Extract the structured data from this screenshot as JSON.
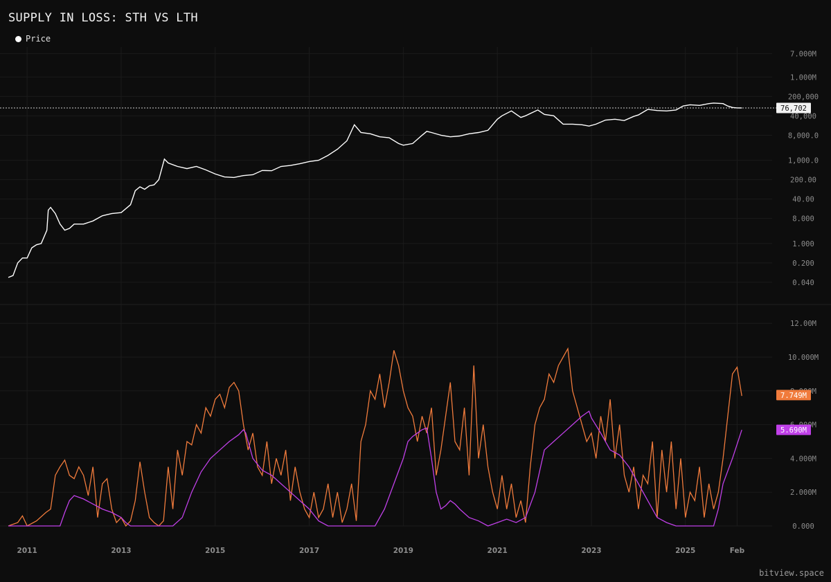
{
  "title": "SUPPLY IN LOSS: STH VS LTH",
  "legend": {
    "label": "Price",
    "color": "#ffffff"
  },
  "watermark": "bitview.space",
  "colors": {
    "background": "#0d0d0d",
    "price": "#ffffff",
    "sth": "#f07b3c",
    "lth": "#c040e8",
    "grid": "#1b1b1b"
  },
  "chart_data": [
    {
      "type": "line",
      "scale": "log",
      "series": [
        {
          "name": "Price",
          "x": [
            2010.6,
            2010.7,
            2010.8,
            2010.9,
            2011.0,
            2011.1,
            2011.2,
            2011.3,
            2011.42,
            2011.45,
            2011.5,
            2011.6,
            2011.7,
            2011.8,
            2011.9,
            2012.0,
            2012.2,
            2012.4,
            2012.6,
            2012.8,
            2013.0,
            2013.2,
            2013.3,
            2013.4,
            2013.5,
            2013.6,
            2013.7,
            2013.8,
            2013.92,
            2014.0,
            2014.2,
            2014.4,
            2014.6,
            2014.8,
            2015.0,
            2015.2,
            2015.4,
            2015.6,
            2015.8,
            2016.0,
            2016.2,
            2016.4,
            2016.6,
            2016.8,
            2017.0,
            2017.2,
            2017.4,
            2017.6,
            2017.8,
            2017.96,
            2018.1,
            2018.3,
            2018.5,
            2018.7,
            2018.9,
            2019.0,
            2019.2,
            2019.4,
            2019.5,
            2019.6,
            2019.8,
            2020.0,
            2020.2,
            2020.4,
            2020.6,
            2020.8,
            2021.0,
            2021.1,
            2021.3,
            2021.5,
            2021.6,
            2021.86,
            2022.0,
            2022.2,
            2022.4,
            2022.6,
            2022.8,
            2022.95,
            2023.1,
            2023.3,
            2023.5,
            2023.7,
            2023.9,
            2024.0,
            2024.2,
            2024.4,
            2024.6,
            2024.8,
            2024.95,
            2025.1,
            2025.3,
            2025.5,
            2025.6,
            2025.8,
            2025.9,
            2026.0,
            2026.1,
            2026.2
          ],
          "y": [
            0.06,
            0.07,
            0.2,
            0.3,
            0.3,
            0.7,
            0.9,
            1.0,
            3.0,
            16,
            20,
            12,
            5.0,
            3.0,
            3.5,
            5.0,
            5.0,
            6.5,
            10,
            12,
            13,
            25,
            80,
            110,
            90,
            120,
            130,
            200,
            1100,
            800,
            600,
            500,
            600,
            450,
            320,
            250,
            240,
            280,
            300,
            430,
            420,
            600,
            650,
            750,
            900,
            1000,
            1500,
            2500,
            5000,
            19000,
            10000,
            9000,
            7000,
            6500,
            4000,
            3500,
            4000,
            8000,
            11000,
            10000,
            8000,
            7000,
            7500,
            9000,
            10000,
            12000,
            30000,
            40000,
            60000,
            35000,
            40000,
            65000,
            45000,
            40000,
            20000,
            20000,
            19000,
            17000,
            20000,
            28000,
            30000,
            27000,
            38000,
            43000,
            68000,
            62000,
            60000,
            65000,
            90000,
            100000,
            95000,
            110000,
            115000,
            110000,
            90000,
            80000,
            77000,
            76702
          ],
          "last_label": "76,702"
        }
      ],
      "y_ticks": [
        "0.040",
        "0.200",
        "1.000",
        "8.000",
        "40.00",
        "200.00",
        "1,000.0",
        "8,000.0",
        "40,000",
        "200,000",
        "1.000M",
        "7.000M"
      ],
      "y_tick_values": [
        0.04,
        0.2,
        1,
        8,
        40,
        200,
        1000,
        8000,
        40000,
        200000,
        1000000,
        7000000
      ],
      "ylim": [
        0.015,
        12000000
      ]
    },
    {
      "type": "line",
      "series": [
        {
          "name": "STH",
          "color": "#f07b3c",
          "x": [
            2010.6,
            2010.8,
            2010.9,
            2011.0,
            2011.2,
            2011.4,
            2011.5,
            2011.6,
            2011.7,
            2011.8,
            2011.9,
            2012.0,
            2012.1,
            2012.2,
            2012.3,
            2012.4,
            2012.5,
            2012.6,
            2012.7,
            2012.8,
            2012.9,
            2013.0,
            2013.1,
            2013.2,
            2013.3,
            2013.4,
            2013.5,
            2013.6,
            2013.7,
            2013.8,
            2013.9,
            2014.0,
            2014.1,
            2014.2,
            2014.3,
            2014.4,
            2014.5,
            2014.6,
            2014.7,
            2014.8,
            2014.9,
            2015.0,
            2015.1,
            2015.2,
            2015.3,
            2015.4,
            2015.5,
            2015.6,
            2015.7,
            2015.8,
            2015.9,
            2016.0,
            2016.1,
            2016.2,
            2016.3,
            2016.4,
            2016.5,
            2016.6,
            2016.7,
            2016.8,
            2016.9,
            2017.0,
            2017.1,
            2017.2,
            2017.3,
            2017.4,
            2017.5,
            2017.6,
            2017.7,
            2017.8,
            2017.9,
            2018.0,
            2018.1,
            2018.2,
            2018.3,
            2018.4,
            2018.5,
            2018.6,
            2018.7,
            2018.8,
            2018.9,
            2019.0,
            2019.1,
            2019.2,
            2019.3,
            2019.4,
            2019.5,
            2019.6,
            2019.7,
            2019.8,
            2019.9,
            2020.0,
            2020.1,
            2020.2,
            2020.3,
            2020.4,
            2020.5,
            2020.6,
            2020.7,
            2020.8,
            2020.9,
            2021.0,
            2021.1,
            2021.2,
            2021.3,
            2021.4,
            2021.5,
            2021.6,
            2021.7,
            2021.8,
            2021.9,
            2022.0,
            2022.1,
            2022.2,
            2022.3,
            2022.4,
            2022.5,
            2022.6,
            2022.7,
            2022.8,
            2022.9,
            2023.0,
            2023.1,
            2023.2,
            2023.3,
            2023.4,
            2023.5,
            2023.6,
            2023.7,
            2023.8,
            2023.9,
            2024.0,
            2024.1,
            2024.2,
            2024.3,
            2024.4,
            2024.5,
            2024.6,
            2024.7,
            2024.8,
            2024.9,
            2025.0,
            2025.1,
            2025.2,
            2025.3,
            2025.4,
            2025.5,
            2025.6,
            2025.7,
            2025.8,
            2025.9,
            2026.0,
            2026.1,
            2026.2
          ],
          "y": [
            0.0,
            0.2,
            0.6,
            0.0,
            0.3,
            0.8,
            1.0,
            3.0,
            3.5,
            3.9,
            3.0,
            2.8,
            3.5,
            3.0,
            1.8,
            3.5,
            0.5,
            2.5,
            2.8,
            1.0,
            0.2,
            0.5,
            0.0,
            0.3,
            1.5,
            3.8,
            2.0,
            0.5,
            0.2,
            0.0,
            0.3,
            3.5,
            1.0,
            4.5,
            3.0,
            5.0,
            4.8,
            6.0,
            5.5,
            7.0,
            6.5,
            7.5,
            7.8,
            7.0,
            8.2,
            8.5,
            8.0,
            6.0,
            4.5,
            5.5,
            3.5,
            3.0,
            5.0,
            2.5,
            4.0,
            3.0,
            4.5,
            1.5,
            3.5,
            2.0,
            1.0,
            0.5,
            2.0,
            0.5,
            1.0,
            2.5,
            0.5,
            2.0,
            0.2,
            1.0,
            2.5,
            0.3,
            5.0,
            6.0,
            8.0,
            7.5,
            9.0,
            7.0,
            8.5,
            10.4,
            9.5,
            8.0,
            7.0,
            6.5,
            5.0,
            6.5,
            5.5,
            7.0,
            3.0,
            4.5,
            6.5,
            8.5,
            5.0,
            4.5,
            7.0,
            3.0,
            9.5,
            4.0,
            6.0,
            3.5,
            2.0,
            1.0,
            3.0,
            1.0,
            2.5,
            0.5,
            1.5,
            0.2,
            3.5,
            6.0,
            7.0,
            7.5,
            9.0,
            8.5,
            9.5,
            10.0,
            10.5,
            8.0,
            7.0,
            6.0,
            5.0,
            5.5,
            4.0,
            6.5,
            5.0,
            7.5,
            4.0,
            6.0,
            3.0,
            2.0,
            3.5,
            1.0,
            3.0,
            2.5,
            5.0,
            0.5,
            4.5,
            2.0,
            5.0,
            1.0,
            4.0,
            0.5,
            2.0,
            1.5,
            3.5,
            0.5,
            2.5,
            1.0,
            2.0,
            4.0,
            6.5,
            9.0,
            9.4,
            7.7
          ]
        },
        {
          "name": "LTH",
          "color": "#c040e8",
          "x": [
            2010.6,
            2011.7,
            2011.8,
            2011.9,
            2012.0,
            2012.2,
            2012.4,
            2012.6,
            2012.8,
            2013.0,
            2013.1,
            2013.2,
            2013.4,
            2013.6,
            2013.8,
            2013.95,
            2014.1,
            2014.3,
            2014.5,
            2014.7,
            2014.9,
            2015.1,
            2015.3,
            2015.5,
            2015.6,
            2015.65,
            2015.7,
            2015.8,
            2016.0,
            2016.2,
            2016.4,
            2016.6,
            2016.8,
            2017.0,
            2017.2,
            2017.4,
            2017.6,
            2017.8,
            2018.0,
            2018.2,
            2018.4,
            2018.6,
            2018.8,
            2019.0,
            2019.1,
            2019.2,
            2019.3,
            2019.4,
            2019.5,
            2019.6,
            2019.7,
            2019.8,
            2019.9,
            2020.0,
            2020.1,
            2020.2,
            2020.4,
            2020.6,
            2020.8,
            2021.0,
            2021.2,
            2021.4,
            2021.6,
            2021.8,
            2022.0,
            2022.2,
            2022.4,
            2022.6,
            2022.8,
            2022.95,
            2023.0,
            2023.2,
            2023.4,
            2023.6,
            2023.8,
            2024.0,
            2024.2,
            2024.4,
            2024.6,
            2024.8,
            2025.0,
            2025.2,
            2025.4,
            2025.5,
            2025.6,
            2025.7,
            2025.8,
            2026.0,
            2026.2
          ],
          "y": [
            0.0,
            0.0,
            0.8,
            1.5,
            1.8,
            1.6,
            1.3,
            1.0,
            0.8,
            0.5,
            0.2,
            0.0,
            0.0,
            0.0,
            0.0,
            0.0,
            0.0,
            0.5,
            2.0,
            3.2,
            4.0,
            4.5,
            5.0,
            5.4,
            5.7,
            5.5,
            5.0,
            4.0,
            3.3,
            3.0,
            2.5,
            2.0,
            1.5,
            1.0,
            0.3,
            0.0,
            0.0,
            0.0,
            0.0,
            0.0,
            0.0,
            1.0,
            2.5,
            4.0,
            5.0,
            5.3,
            5.5,
            5.7,
            5.8,
            4.0,
            2.0,
            1.0,
            1.2,
            1.5,
            1.3,
            1.0,
            0.5,
            0.3,
            0.0,
            0.2,
            0.4,
            0.2,
            0.5,
            2.0,
            4.5,
            5.0,
            5.5,
            6.0,
            6.5,
            6.8,
            6.4,
            5.5,
            4.5,
            4.2,
            3.5,
            2.5,
            1.5,
            0.5,
            0.2,
            0.0,
            0.0,
            0.0,
            0.0,
            0.0,
            0.0,
            1.0,
            2.5,
            4.0,
            5.69
          ]
        }
      ],
      "y_ticks": [
        "0.000",
        "2.000M",
        "4.000M",
        "6.000M",
        "8.000M",
        "10.000M",
        "12.00M"
      ],
      "y_tick_values": [
        0,
        2,
        4,
        6,
        8,
        10,
        12
      ],
      "ylim": [
        0,
        12.5
      ],
      "last_labels": {
        "sth": "7.749M",
        "lth": "5.690M"
      }
    }
  ],
  "x_axis": {
    "labels": [
      "2011",
      "2013",
      "2015",
      "2017",
      "2019",
      "2021",
      "2023",
      "2025",
      "Feb"
    ],
    "values": [
      2011,
      2013,
      2015,
      2017,
      2019,
      2021,
      2023,
      2025,
      2026.1
    ],
    "range": [
      2010.6,
      2026.55
    ]
  }
}
